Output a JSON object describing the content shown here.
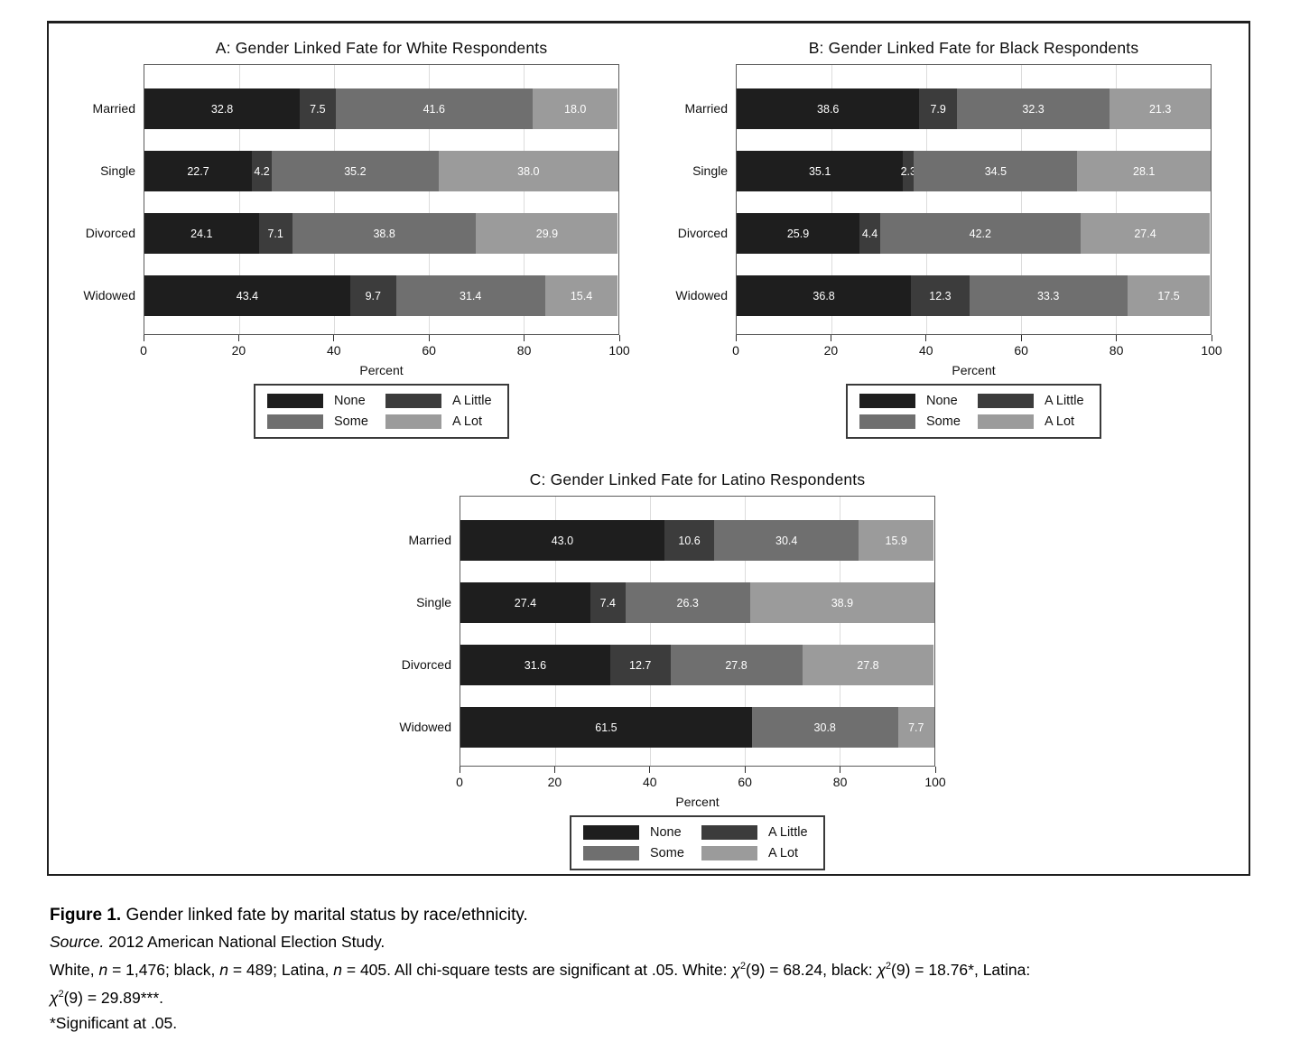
{
  "chart_colors": {
    "None": "#1e1e1e",
    "A Little": "#3c3c3c",
    "Some": "#6f6f6f",
    "A Lot": "#9b9b9b"
  },
  "chart_data": [
    {
      "type": "bar",
      "stacked": true,
      "orientation": "horizontal",
      "title": "A: Gender Linked Fate for White Respondents",
      "categories": [
        "Married",
        "Single",
        "Divorced",
        "Widowed"
      ],
      "series": [
        {
          "name": "None",
          "values": [
            32.8,
            22.7,
            24.1,
            43.4
          ]
        },
        {
          "name": "A Little",
          "values": [
            7.5,
            4.2,
            7.1,
            9.7
          ]
        },
        {
          "name": "Some",
          "values": [
            41.6,
            35.2,
            38.8,
            31.4
          ]
        },
        {
          "name": "A Lot",
          "values": [
            18.0,
            38.0,
            29.9,
            15.4
          ]
        }
      ],
      "xlabel": "Percent",
      "xlim": [
        0,
        100
      ],
      "xticks": [
        0,
        20,
        40,
        60,
        80,
        100
      ],
      "grid": true,
      "legend": [
        "None",
        "A Little",
        "Some",
        "A Lot"
      ],
      "legend_position": "bottom"
    },
    {
      "type": "bar",
      "stacked": true,
      "orientation": "horizontal",
      "title": "B: Gender Linked Fate for Black Respondents",
      "categories": [
        "Married",
        "Single",
        "Divorced",
        "Widowed"
      ],
      "series": [
        {
          "name": "None",
          "values": [
            38.6,
            35.1,
            25.9,
            36.8
          ]
        },
        {
          "name": "A Little",
          "values": [
            7.9,
            2.3,
            4.4,
            12.3
          ]
        },
        {
          "name": "Some",
          "values": [
            32.3,
            34.5,
            42.2,
            33.3
          ]
        },
        {
          "name": "A Lot",
          "values": [
            21.3,
            28.1,
            27.4,
            17.5
          ]
        }
      ],
      "xlabel": "Percent",
      "xlim": [
        0,
        100
      ],
      "xticks": [
        0,
        20,
        40,
        60,
        80,
        100
      ],
      "grid": true,
      "legend": [
        "None",
        "A Little",
        "Some",
        "A Lot"
      ],
      "legend_position": "bottom"
    },
    {
      "type": "bar",
      "stacked": true,
      "orientation": "horizontal",
      "title": "C: Gender Linked Fate for Latino Respondents",
      "categories": [
        "Married",
        "Single",
        "Divorced",
        "Widowed"
      ],
      "series": [
        {
          "name": "None",
          "values": [
            43.0,
            27.4,
            31.6,
            61.5
          ]
        },
        {
          "name": "A Little",
          "values": [
            10.6,
            7.4,
            12.7,
            0
          ]
        },
        {
          "name": "Some",
          "values": [
            30.4,
            26.3,
            27.8,
            30.8
          ]
        },
        {
          "name": "A Lot",
          "values": [
            15.9,
            38.9,
            27.8,
            7.7
          ]
        }
      ],
      "xlabel": "Percent",
      "xlim": [
        0,
        100
      ],
      "xticks": [
        0,
        20,
        40,
        60,
        80,
        100
      ],
      "grid": true,
      "legend": [
        "None",
        "A Little",
        "Some",
        "A Lot"
      ],
      "legend_position": "bottom"
    }
  ],
  "caption": {
    "lines": [
      {
        "segments": [
          {
            "text": "Figure 1.",
            "style": "bold"
          },
          {
            "text": "  Gender linked fate by marital status by race/ethnicity.",
            "style": "normal"
          }
        ]
      },
      {
        "segments": [
          {
            "text": "Source.",
            "style": "italic"
          },
          {
            "text": " 2012 American National Election Study.",
            "style": "normal"
          }
        ]
      },
      {
        "segments": [
          {
            "text": "White, ",
            "style": "normal"
          },
          {
            "text": "n",
            "style": "italic"
          },
          {
            "text": " = 1,476; black, ",
            "style": "normal"
          },
          {
            "text": "n",
            "style": "italic"
          },
          {
            "text": " = 489; Latina, ",
            "style": "normal"
          },
          {
            "text": "n",
            "style": "italic"
          },
          {
            "text": " = 405. All chi-square tests are significant at .05. White: ",
            "style": "normal"
          },
          {
            "text": "χ",
            "style": "italic"
          },
          {
            "text": "2",
            "style": "sup"
          },
          {
            "text": "(9) = 68.24, black: ",
            "style": "normal"
          },
          {
            "text": "χ",
            "style": "italic"
          },
          {
            "text": "2",
            "style": "sup"
          },
          {
            "text": "(9) = 18.76*, Latina:",
            "style": "normal"
          }
        ]
      },
      {
        "segments": [
          {
            "text": "χ",
            "style": "italic"
          },
          {
            "text": "2",
            "style": "sup"
          },
          {
            "text": "(9) = 29.89***.",
            "style": "normal"
          }
        ]
      },
      {
        "segments": [
          {
            "text": "*Significant at .05.",
            "style": "normal"
          }
        ]
      }
    ]
  }
}
